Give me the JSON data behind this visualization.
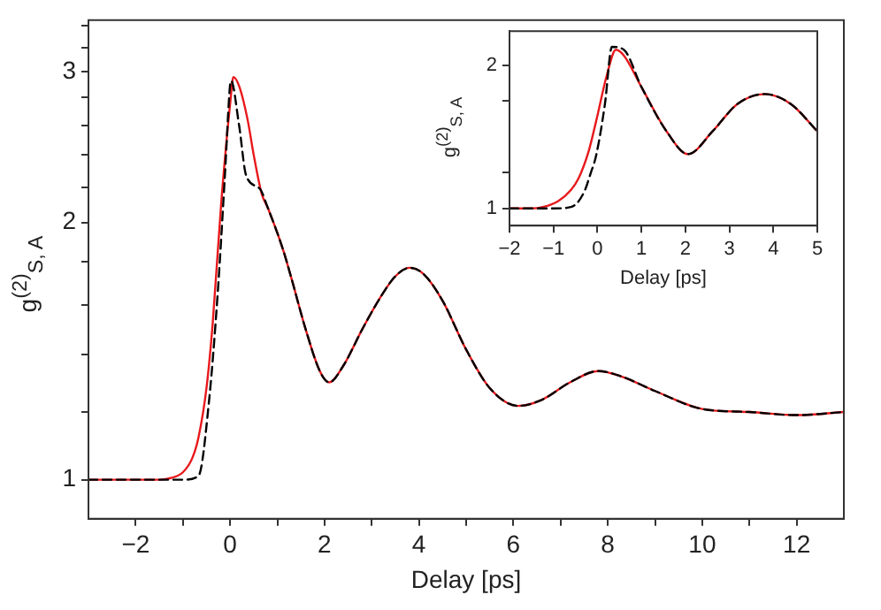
{
  "chart_data": [
    {
      "type": "line",
      "xlabel": "Delay [ps]",
      "ylabel": "g$^{(2)}$$_{S, A}$",
      "log": "y",
      "grid": false,
      "legend": false,
      "marker": "none",
      "xlim": [
        -3,
        13
      ],
      "ylim": [
        0.9,
        3.45
      ],
      "xticks": [
        -2,
        {
          "value": -1,
          "label": null
        },
        0,
        {
          "value": 1,
          "label": null
        },
        2,
        {
          "value": 3,
          "label": null
        },
        4,
        {
          "value": 5,
          "label": null
        },
        6,
        {
          "value": 7,
          "label": null
        },
        8,
        {
          "value": 9,
          "label": null
        },
        10,
        {
          "value": 11,
          "label": null
        },
        12
      ],
      "yticks": [
        1,
        {
          "value": 1.2,
          "label": null
        },
        {
          "value": 1.4,
          "label": null
        },
        {
          "value": 1.6,
          "label": null
        },
        {
          "value": 1.8,
          "label": null
        },
        2,
        {
          "value": 2.2,
          "label": null
        },
        {
          "value": 2.4,
          "label": null
        },
        {
          "value": 2.6,
          "label": null
        },
        {
          "value": 2.8,
          "label": null
        },
        3,
        {
          "value": 3.2,
          "label": null
        },
        {
          "value": 3.4,
          "label": null
        }
      ],
      "series": [
        {
          "color": "#e8191c",
          "line_style": "solid",
          "x": [
            -3,
            -2,
            -1.5,
            -1.24,
            -1,
            -0.8,
            -0.67,
            -0.5,
            -0.37,
            -0.19,
            0,
            0.07,
            0.2,
            0.37,
            0.5,
            0.67,
            0.8,
            1.12,
            1.3,
            1.6,
            1.9,
            2.1,
            2.4,
            2.8,
            3.2,
            3.5,
            3.8,
            4.1,
            4.5,
            5,
            5.5,
            6.1,
            6.6,
            7.2,
            7.8,
            8.3,
            9,
            10,
            11,
            12,
            13
          ],
          "values": [
            1,
            1,
            1,
            1.005,
            1.02,
            1.06,
            1.12,
            1.28,
            1.52,
            2.1,
            2.75,
            2.96,
            2.88,
            2.64,
            2.4,
            2.16,
            2.08,
            1.86,
            1.72,
            1.5,
            1.34,
            1.3,
            1.36,
            1.5,
            1.64,
            1.73,
            1.77,
            1.74,
            1.62,
            1.42,
            1.28,
            1.22,
            1.24,
            1.3,
            1.34,
            1.32,
            1.27,
            1.21,
            1.2,
            1.19,
            1.2
          ]
        },
        {
          "color": "#000000",
          "line_style": "dashed",
          "x": [
            -3,
            -2,
            -1,
            -0.67,
            -0.45,
            -0.26,
            -0.11,
            0,
            0.02,
            0.19,
            0.34,
            0.63,
            0.8,
            1.12,
            1.3,
            1.6,
            1.9,
            2.1,
            2.4,
            2.8,
            3.2,
            3.5,
            3.8,
            4.1,
            4.5,
            5,
            5.5,
            6.1,
            6.6,
            7.2,
            7.8,
            8.3,
            9,
            10,
            11,
            12,
            13
          ],
          "values": [
            1,
            1,
            1,
            1.01,
            1.23,
            1.66,
            2.27,
            2.9,
            2.93,
            2.6,
            2.27,
            2.19,
            2.08,
            1.86,
            1.72,
            1.5,
            1.34,
            1.3,
            1.36,
            1.5,
            1.64,
            1.73,
            1.77,
            1.74,
            1.62,
            1.42,
            1.28,
            1.22,
            1.24,
            1.3,
            1.34,
            1.32,
            1.27,
            1.21,
            1.2,
            1.19,
            1.2
          ]
        }
      ]
    },
    {
      "type": "line",
      "xlabel": "Delay [ps]",
      "ylabel": "g$^{(2)}$$_{S, A}$",
      "grid": false,
      "legend": false,
      "marker": "none",
      "xlim": [
        -2,
        5
      ],
      "ylim": [
        0.88,
        2.24
      ],
      "xticks": [
        -2,
        -1,
        0,
        1,
        2,
        3,
        4,
        5
      ],
      "yticks": [
        1,
        {
          "value": 1.25,
          "label": null
        },
        {
          "value": 1.75,
          "label": null
        },
        2
      ],
      "series": [
        {
          "color": "#e8191c",
          "line_style": "solid",
          "x": [
            -2,
            -1.5,
            -1.24,
            -0.9,
            -0.6,
            -0.43,
            -0.2,
            -0.03,
            0.22,
            0.42,
            0.6,
            1,
            1.57,
            2.06,
            2.62,
            3.18,
            3.8,
            4.4,
            5
          ],
          "values": [
            1,
            1,
            1.01,
            1.05,
            1.13,
            1.21,
            1.4,
            1.61,
            1.94,
            2.11,
            2.07,
            1.85,
            1.54,
            1.38,
            1.54,
            1.73,
            1.8,
            1.73,
            1.54
          ]
        },
        {
          "color": "#000000",
          "line_style": "dashed",
          "x": [
            -2,
            -1,
            -0.6,
            -0.31,
            -0.15,
            -0.03,
            0.17,
            0.33,
            0.6,
            1,
            1.57,
            2.06,
            2.62,
            3.18,
            3.8,
            4.4,
            5
          ],
          "values": [
            1,
            1,
            1.01,
            1.11,
            1.25,
            1.37,
            1.73,
            2.13,
            2.11,
            1.85,
            1.54,
            1.38,
            1.54,
            1.73,
            1.8,
            1.73,
            1.54
          ]
        }
      ]
    }
  ]
}
